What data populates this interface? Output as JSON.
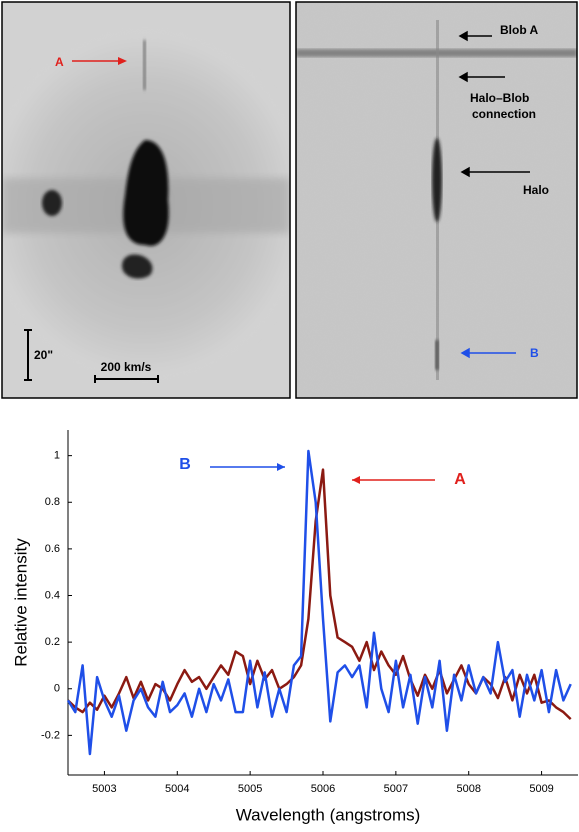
{
  "panels": {
    "left": {
      "label_a": "A",
      "scale_y": "20\"",
      "scale_x": "200 km/s"
    },
    "right": {
      "blob_a": "Blob A",
      "connection": [
        "Halo–Blob",
        "connection"
      ],
      "halo": "Halo",
      "label_b": "B"
    }
  },
  "chart_data": {
    "type": "line",
    "x_label": "Wavelength (angstroms)",
    "y_label": "Relative  intensity",
    "xlim": [
      5002.5,
      5009.5
    ],
    "ylim": [
      -0.37,
      1.11
    ],
    "xticks": [
      5003,
      5004,
      5005,
      5006,
      5007,
      5008,
      5009
    ],
    "yticks": [
      -0.2,
      0,
      0.2,
      0.4,
      0.6,
      0.8,
      1
    ],
    "x": [
      5002.5,
      5002.6,
      5002.7,
      5002.8,
      5002.9,
      5003.0,
      5003.1,
      5003.2,
      5003.3,
      5003.4,
      5003.5,
      5003.6,
      5003.7,
      5003.8,
      5003.9,
      5004.0,
      5004.1,
      5004.2,
      5004.3,
      5004.4,
      5004.5,
      5004.6,
      5004.7,
      5004.8,
      5004.9,
      5005.0,
      5005.1,
      5005.2,
      5005.3,
      5005.4,
      5005.5,
      5005.6,
      5005.7,
      5005.8,
      5005.9,
      5006.0,
      5006.1,
      5006.2,
      5006.3,
      5006.4,
      5006.5,
      5006.6,
      5006.7,
      5006.8,
      5006.9,
      5007.0,
      5007.1,
      5007.2,
      5007.3,
      5007.4,
      5007.5,
      5007.6,
      5007.7,
      5007.8,
      5007.9,
      5008.0,
      5008.1,
      5008.2,
      5008.3,
      5008.4,
      5008.5,
      5008.6,
      5008.7,
      5008.8,
      5008.9,
      5009.0,
      5009.1,
      5009.2,
      5009.3,
      5009.4
    ],
    "series": [
      {
        "color": "#8b1a12",
        "values": [
          -0.05,
          -0.08,
          -0.1,
          -0.06,
          -0.09,
          -0.03,
          -0.08,
          -0.02,
          0.05,
          -0.04,
          0.03,
          -0.05,
          0.02,
          0,
          -0.05,
          0.02,
          0.08,
          0.03,
          0.05,
          0,
          0.05,
          0.1,
          0.06,
          0.16,
          0.14,
          0.02,
          0.12,
          0.04,
          0.08,
          0,
          0.02,
          0.05,
          0.1,
          0.3,
          0.72,
          0.94,
          0.4,
          0.22,
          0.2,
          0.18,
          0.12,
          0.2,
          0.08,
          0.16,
          0.1,
          0.06,
          0.14,
          0.04,
          -0.03,
          0.06,
          0,
          0.08,
          -0.02,
          0.04,
          0.1,
          0.02,
          -0.02,
          0.05,
          0.02,
          -0.04,
          0.05,
          -0.05,
          0.06,
          -0.02,
          0.06,
          -0.06,
          -0.05,
          -0.08,
          -0.1,
          -0.13
        ]
      },
      {
        "color": "#1f4fe8",
        "values": [
          -0.05,
          -0.1,
          0.1,
          -0.28,
          0.05,
          -0.05,
          -0.12,
          -0.03,
          -0.18,
          -0.05,
          0,
          -0.08,
          -0.12,
          0.03,
          -0.1,
          -0.07,
          -0.02,
          -0.12,
          0,
          -0.1,
          0.02,
          -0.05,
          0.04,
          -0.1,
          -0.1,
          0.12,
          -0.08,
          0.07,
          -0.12,
          0,
          -0.1,
          0.1,
          0.14,
          1.02,
          0.8,
          0.3,
          -0.14,
          0.07,
          0.1,
          0.05,
          0.1,
          -0.08,
          0.24,
          0,
          -0.1,
          0.12,
          -0.08,
          0.06,
          -0.15,
          0.05,
          -0.08,
          0.12,
          -0.18,
          0.06,
          -0.05,
          0.1,
          -0.02,
          0.05,
          -0.02,
          0.2,
          0.03,
          0.08,
          -0.12,
          0.06,
          -0.05,
          0.08,
          -0.1,
          0.08,
          -0.05,
          0.02
        ]
      }
    ],
    "annotations": [
      {
        "text": "B",
        "color": "#1f4fe8"
      },
      {
        "text": "A",
        "color": "#e0201c"
      }
    ]
  }
}
